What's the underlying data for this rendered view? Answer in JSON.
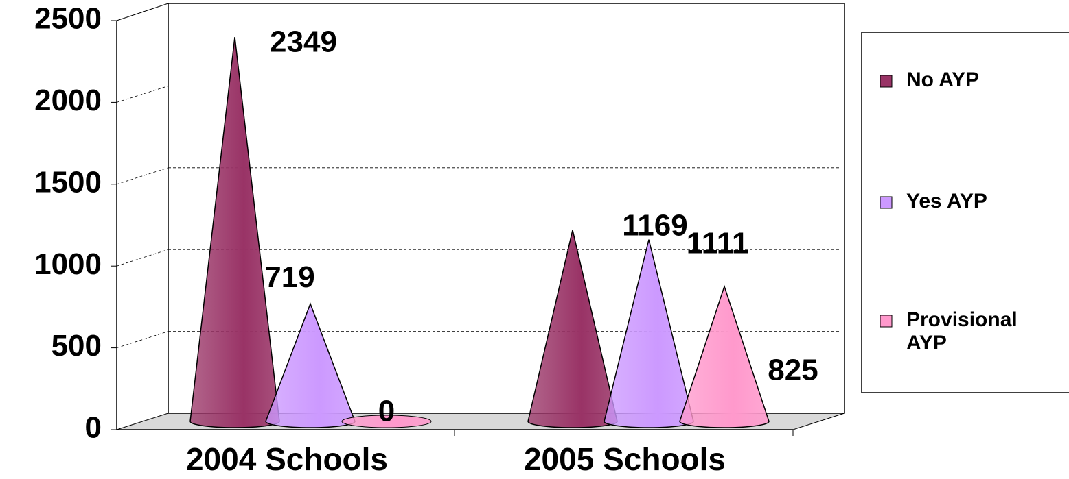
{
  "chart_data": {
    "type": "cone",
    "categories": [
      "2004 Schools",
      "2005 Schools"
    ],
    "series": [
      {
        "name": "No AYP",
        "color": "#993366",
        "values": [
          2349,
          1169
        ]
      },
      {
        "name": "Yes AYP",
        "color": "#cc99ff",
        "values": [
          719,
          1111
        ]
      },
      {
        "name": "Provisional AYP",
        "color": "#ff99cc",
        "values": [
          0,
          825
        ]
      }
    ],
    "ylim": [
      0,
      2500
    ],
    "yticks": [
      0,
      500,
      1000,
      1500,
      2000,
      2500
    ],
    "grid": true,
    "legend": "right"
  }
}
